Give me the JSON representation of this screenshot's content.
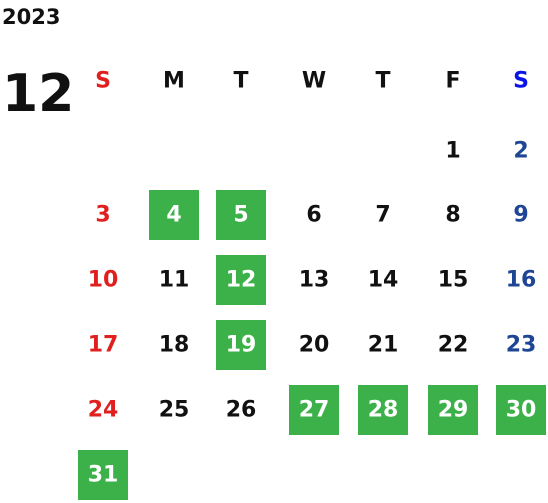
{
  "calendar": {
    "year": "2023",
    "month": "12",
    "weekdays": [
      "S",
      "M",
      "T",
      "W",
      "T",
      "F",
      "S"
    ],
    "weeks": [
      [
        null,
        null,
        null,
        null,
        null,
        {
          "day": 1
        },
        {
          "day": 2
        }
      ],
      [
        {
          "day": 3
        },
        {
          "day": 4,
          "marked": true
        },
        {
          "day": 5,
          "marked": true
        },
        {
          "day": 6
        },
        {
          "day": 7
        },
        {
          "day": 8
        },
        {
          "day": 9
        }
      ],
      [
        {
          "day": 10
        },
        {
          "day": 11
        },
        {
          "day": 12,
          "marked": true
        },
        {
          "day": 13
        },
        {
          "day": 14
        },
        {
          "day": 15
        },
        {
          "day": 16
        }
      ],
      [
        {
          "day": 17
        },
        {
          "day": 18
        },
        {
          "day": 19,
          "marked": true
        },
        {
          "day": 20
        },
        {
          "day": 21
        },
        {
          "day": 22
        },
        {
          "day": 23
        }
      ],
      [
        {
          "day": 24
        },
        {
          "day": 25
        },
        {
          "day": 26
        },
        {
          "day": 27,
          "marked": true
        },
        {
          "day": 28,
          "marked": true
        },
        {
          "day": 29,
          "marked": true
        },
        {
          "day": 30,
          "marked": true
        }
      ],
      [
        {
          "day": 31,
          "marked": true
        },
        null,
        null,
        null,
        null,
        null,
        null
      ]
    ],
    "mark_color": "#3cb14a",
    "sunday_color": "#e0201e",
    "saturday_color": "#1f4595",
    "saturday_header_color": "#0a14e6"
  }
}
